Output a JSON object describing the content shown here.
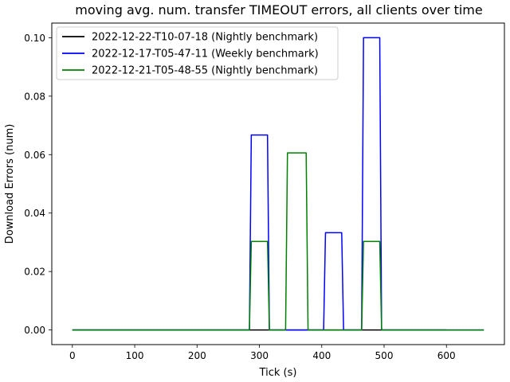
{
  "chart_data": {
    "type": "line",
    "title": "moving avg. num. transfer TIMEOUT errors, all clients over time",
    "xlabel": "Tick (s)",
    "ylabel": "Download Errors (num)",
    "xlim": [
      -33,
      693
    ],
    "ylim": [
      -0.005,
      0.105
    ],
    "xticks": [
      0,
      100,
      200,
      300,
      400,
      500,
      600
    ],
    "xtick_labels": [
      "0",
      "100",
      "200",
      "300",
      "400",
      "500",
      "600"
    ],
    "yticks": [
      0.0,
      0.02,
      0.04,
      0.06,
      0.08,
      0.1
    ],
    "ytick_labels": [
      "0.00",
      "0.02",
      "0.04",
      "0.06",
      "0.08",
      "0.10"
    ],
    "grid": false,
    "legend_position": "top-left",
    "series": [
      {
        "name": "2022-12-22-T10-07-18 (Nightly benchmark)",
        "color": "#000000",
        "x": [
          0,
          600
        ],
        "y": [
          0,
          0
        ]
      },
      {
        "name": "2022-12-17-T05-47-11 (Weekly benchmark)",
        "color": "#0000ff",
        "x": [
          0,
          284,
          287,
          313,
          316,
          403,
          406,
          432,
          435,
          464,
          467,
          493,
          496,
          660
        ],
        "y": [
          0,
          0,
          0.0667,
          0.0667,
          0,
          0,
          0.0333,
          0.0333,
          0,
          0,
          0.1,
          0.1,
          0,
          0
        ]
      },
      {
        "name": "2022-12-21-T05-48-55 (Nightly benchmark)",
        "color": "#008000",
        "x": [
          0,
          284,
          287,
          313,
          316,
          342,
          345,
          375,
          378,
          464,
          467,
          493,
          496,
          660
        ],
        "y": [
          0,
          0,
          0.0303,
          0.0303,
          0,
          0,
          0.0606,
          0.0606,
          0,
          0,
          0.0303,
          0.0303,
          0,
          0
        ]
      }
    ]
  }
}
